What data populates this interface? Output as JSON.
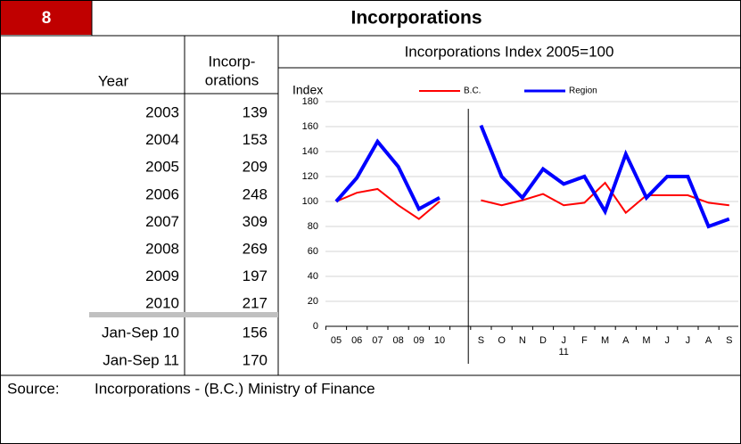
{
  "header": {
    "number": "8",
    "title": "Incorporations"
  },
  "table": {
    "year_header": "Year",
    "value_header": [
      "Incorp-",
      "orations"
    ],
    "rows": [
      [
        "2003",
        139
      ],
      [
        "2004",
        153
      ],
      [
        "2005",
        209
      ],
      [
        "2006",
        248
      ],
      [
        "2007",
        309
      ],
      [
        "2008",
        269
      ],
      [
        "2009",
        197
      ],
      [
        "2010",
        217
      ],
      [
        "Jan-Sep 10",
        156
      ],
      [
        "Jan-Sep 11",
        170
      ]
    ]
  },
  "source": {
    "label": "Source:",
    "text": "Incorporations - (B.C.) Ministry of Finance"
  },
  "chart_data": {
    "type": "line",
    "title": "Incorporations Index   2005=100",
    "y_label": "Index",
    "categories": [
      "05",
      "06",
      "07",
      "08",
      "09",
      "10",
      null,
      "S",
      "O",
      "N",
      "D",
      "J",
      "F",
      "M",
      "A",
      "M",
      "J",
      "J",
      "A",
      "S"
    ],
    "annotations": [
      "11"
    ],
    "series": [
      {
        "name": "B.C.",
        "color": "#ff0000",
        "values": [
          100,
          107,
          110,
          97,
          86,
          100,
          null,
          101,
          97,
          101,
          106,
          97,
          99,
          115,
          91,
          105,
          105,
          105,
          99,
          97
        ]
      },
      {
        "name": "Region",
        "color": "#0000ff",
        "values": [
          100,
          119,
          148,
          128,
          94,
          103,
          null,
          161,
          120,
          103,
          126,
          114,
          120,
          92,
          138,
          103,
          120,
          120,
          80,
          86
        ]
      }
    ],
    "ylim": [
      0,
      180
    ],
    "yticks": [
      0,
      20,
      40,
      60,
      80,
      100,
      120,
      140,
      160,
      180
    ],
    "grid": true,
    "legend": "top"
  }
}
